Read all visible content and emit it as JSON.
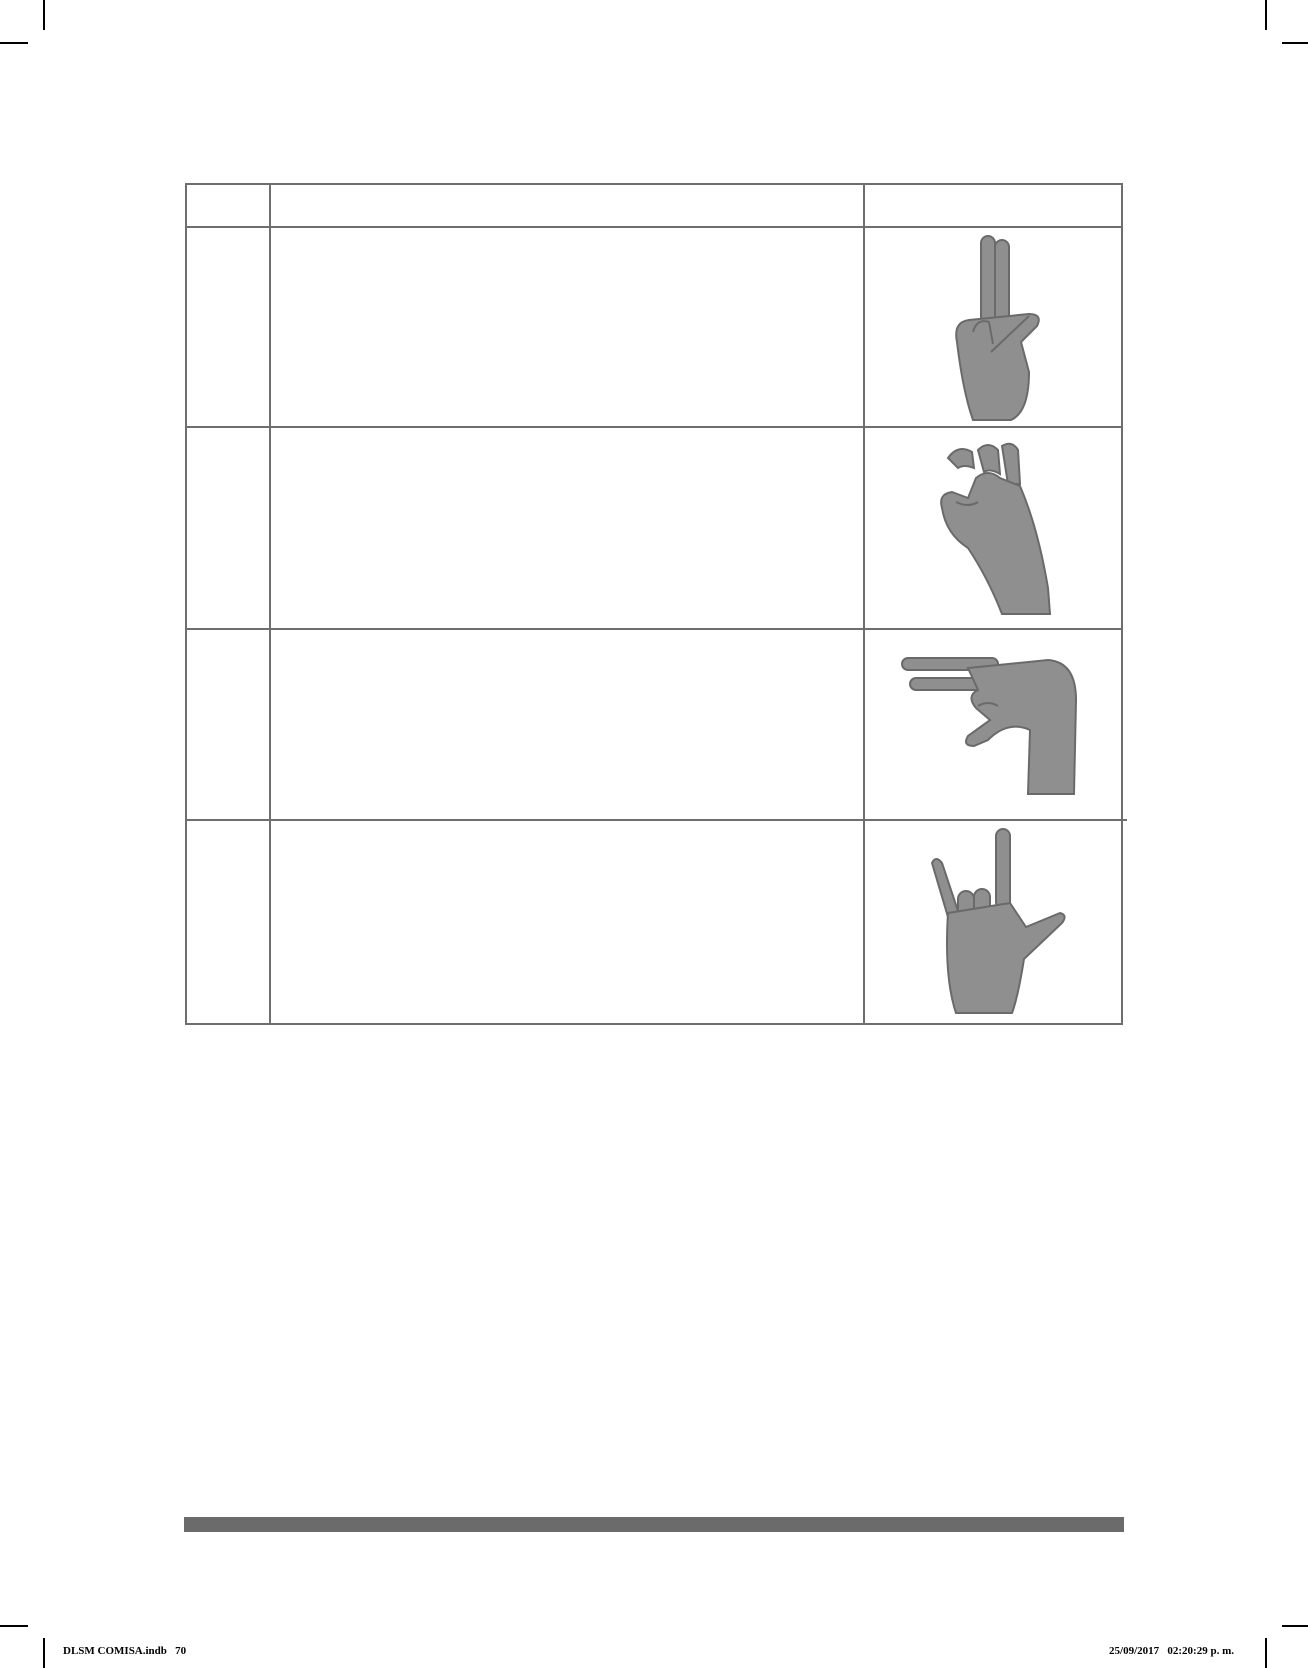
{
  "table": {
    "header": {
      "col1": "",
      "col2": "",
      "col3": ""
    },
    "rows": [
      {
        "num": "",
        "description": "",
        "image": "hand-sign-two-fingers-crossed-icon"
      },
      {
        "num": "",
        "description": "",
        "image": "hand-sign-bent-fingers-icon"
      },
      {
        "num": "",
        "description": "",
        "image": "hand-sign-horizontal-pinch-icon"
      },
      {
        "num": "",
        "description": "",
        "image": "hand-sign-i-love-you-icon"
      }
    ]
  },
  "slug": {
    "left": "DLSM COMISA.indb   70",
    "right": "25/09/2017   02:20:29 p. m."
  },
  "colors": {
    "rule": "#6e6e6e",
    "footer_bar": "#6b6b6b",
    "hand": "#8f8f8f",
    "hand_shadow": "#6a6a6a"
  }
}
